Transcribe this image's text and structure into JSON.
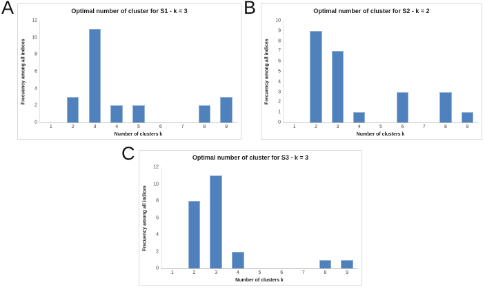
{
  "figure": {
    "background": "#ffffff",
    "bar_color": "#4f81bd",
    "bar_border_color": "#95b3d7",
    "axis_line_color": "#c2c2c2",
    "panel_border_color": "#d9d9d9",
    "text_color": "#1a1a1a",
    "tick_text_color": "#3f3f3f",
    "panel_labels": [
      "A",
      "B",
      "C"
    ]
  },
  "chart_data": [
    {
      "type": "bar",
      "panel_label": "A",
      "title": "Optimal number of cluster for S1 - k = 3",
      "categories": [
        "1",
        "2",
        "3",
        "4",
        "5",
        "6",
        "7",
        "8",
        "9"
      ],
      "values": [
        0,
        3,
        11,
        2,
        2,
        0,
        0,
        2,
        3
      ],
      "xlabel": "Number of clusters k",
      "ylabel": "Frecuency among all indices",
      "ylim": [
        0,
        12
      ],
      "ytick_step": 2,
      "grid": false,
      "legend": "none"
    },
    {
      "type": "bar",
      "panel_label": "B",
      "title": "Optimal number of cluster for S2 - k = 2",
      "categories": [
        "1",
        "2",
        "3",
        "4",
        "5",
        "6",
        "7",
        "8",
        "9"
      ],
      "values": [
        0,
        9,
        7,
        1,
        0,
        3,
        0,
        3,
        1
      ],
      "xlabel": "Number of clusters k",
      "ylabel": "Frecuency among all indices",
      "ylim": [
        0,
        10
      ],
      "ytick_step": 1,
      "grid": false,
      "legend": "none"
    },
    {
      "type": "bar",
      "panel_label": "C",
      "title": "Optimal number of cluster for S3 - k = 3",
      "categories": [
        "1",
        "2",
        "3",
        "4",
        "5",
        "6",
        "7",
        "8",
        "9"
      ],
      "values": [
        0,
        8,
        11,
        2,
        0,
        0,
        0,
        1,
        1
      ],
      "xlabel": "Number of clusters k",
      "ylabel": "Frecuency among all indices",
      "ylim": [
        0,
        12
      ],
      "ytick_step": 2,
      "grid": false,
      "legend": "none"
    }
  ]
}
